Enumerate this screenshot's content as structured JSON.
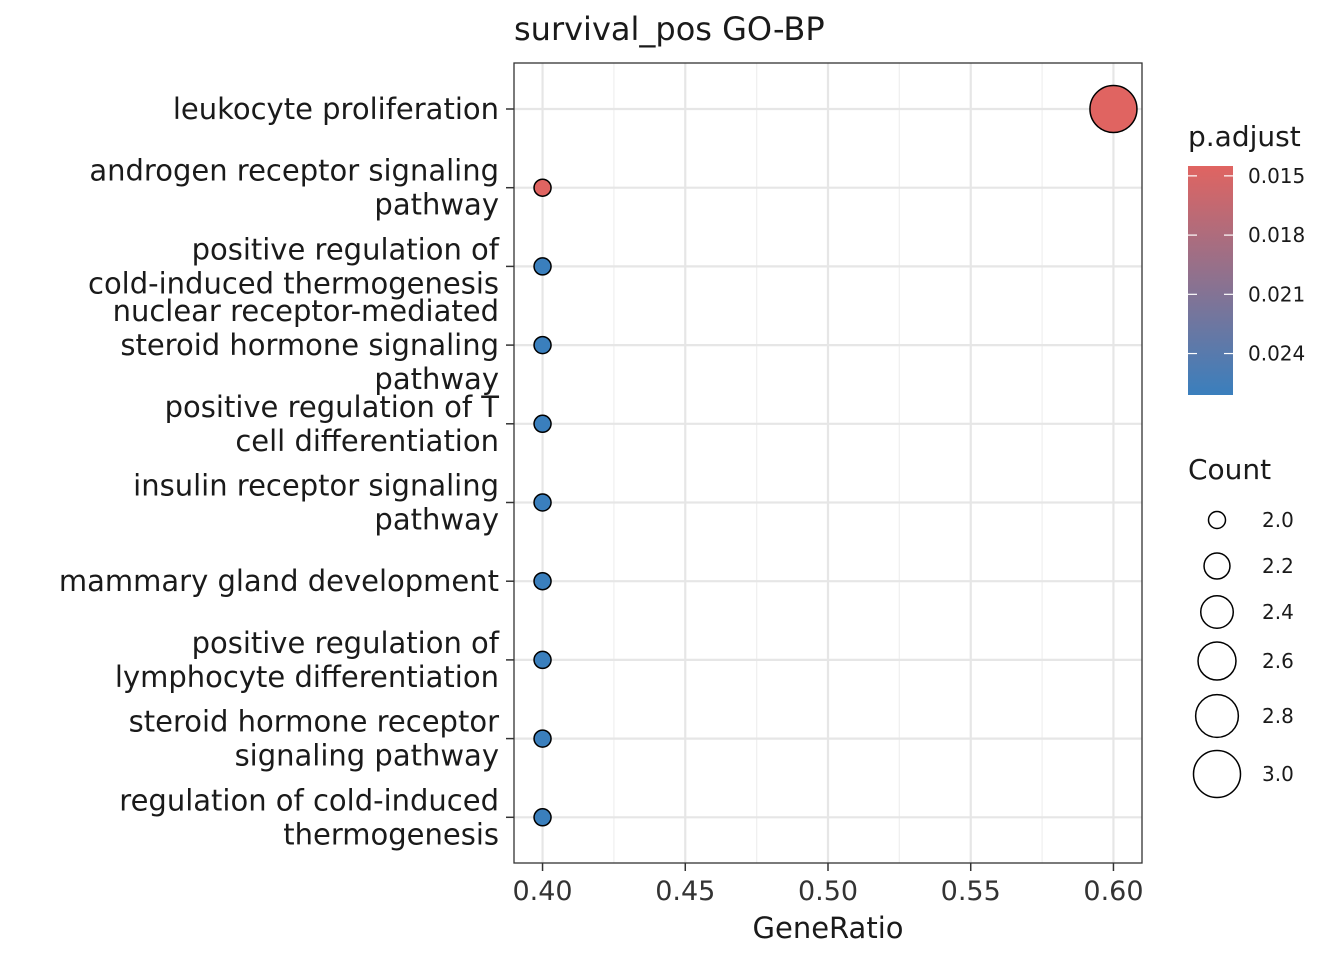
{
  "chart_data": {
    "type": "scatter",
    "title": "survival_pos GO-BP",
    "xlabel": "GeneRatio",
    "ylabel": "",
    "xlim": [
      0.39,
      0.61
    ],
    "x_ticks": [
      "0.40",
      "0.45",
      "0.50",
      "0.55",
      "0.60"
    ],
    "grid": true,
    "points": [
      {
        "term": [
          "leukocyte proliferation"
        ],
        "x": 0.6,
        "count": 3,
        "p_adjust": 0.0145
      },
      {
        "term": [
          "androgen receptor signaling",
          "pathway"
        ],
        "x": 0.4,
        "count": 2,
        "p_adjust": 0.0145
      },
      {
        "term": [
          "positive regulation of",
          "cold-induced thermogenesis"
        ],
        "x": 0.4,
        "count": 2,
        "p_adjust": 0.0261
      },
      {
        "term": [
          "nuclear receptor-mediated",
          "steroid hormone signaling",
          "pathway"
        ],
        "x": 0.4,
        "count": 2,
        "p_adjust": 0.0261
      },
      {
        "term": [
          "positive regulation of T",
          "cell differentiation"
        ],
        "x": 0.4,
        "count": 2,
        "p_adjust": 0.0261
      },
      {
        "term": [
          "insulin receptor signaling",
          "pathway"
        ],
        "x": 0.4,
        "count": 2,
        "p_adjust": 0.0261
      },
      {
        "term": [
          "mammary gland development"
        ],
        "x": 0.4,
        "count": 2,
        "p_adjust": 0.0261
      },
      {
        "term": [
          "positive regulation of",
          "lymphocyte differentiation"
        ],
        "x": 0.4,
        "count": 2,
        "p_adjust": 0.0261
      },
      {
        "term": [
          "steroid hormone receptor",
          "signaling pathway"
        ],
        "x": 0.4,
        "count": 2,
        "p_adjust": 0.0261
      },
      {
        "term": [
          "regulation of cold-induced",
          "thermogenesis"
        ],
        "x": 0.4,
        "count": 2,
        "p_adjust": 0.0261
      }
    ],
    "legend": {
      "placement": "right",
      "color": {
        "title": "p.adjust",
        "range": [
          0.0145,
          0.0261
        ],
        "ticks": [
          0.015,
          0.018,
          0.021,
          0.024
        ],
        "tick_labels": [
          "0.015",
          "0.018",
          "0.021",
          "0.024"
        ],
        "low_color": "#e06461",
        "high_color": "#3a7fbd"
      },
      "size": {
        "title": "Count",
        "values": [
          2.0,
          2.2,
          2.4,
          2.6,
          2.8,
          3.0
        ],
        "labels": [
          "2.0",
          "2.2",
          "2.4",
          "2.6",
          "2.8",
          "3.0"
        ]
      }
    }
  }
}
